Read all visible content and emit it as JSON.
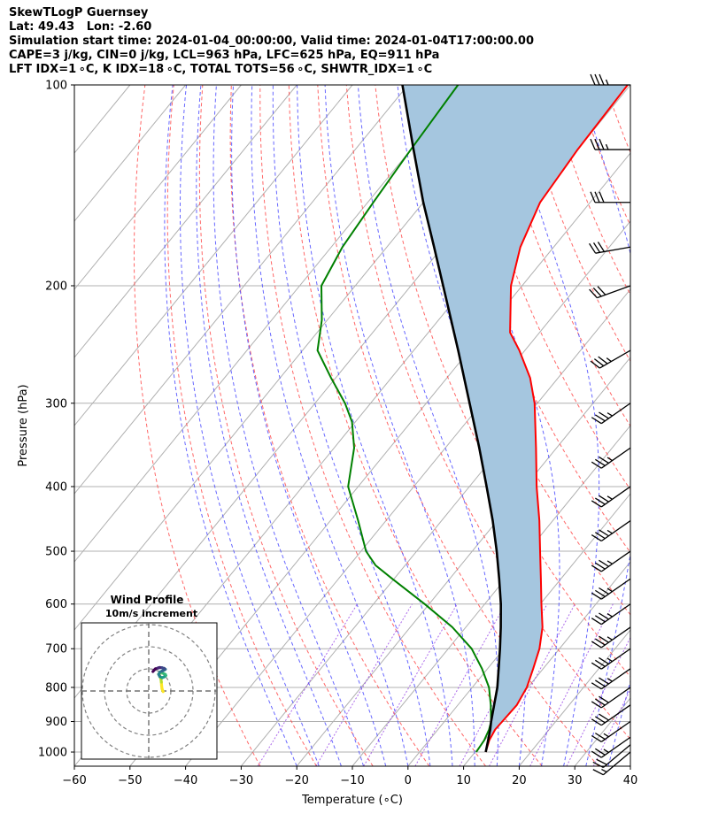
{
  "header": {
    "line1": "SkewTLogP Guernsey",
    "line2": "Lat: 49.43   Lon: -2.60",
    "line3": "Simulation start time: 2024-01-04_00:00:00, Valid time: 2024-01-04T17:00:00.00",
    "line4": "CAPE=3 j/kg, CIN=0 j/kg, LCL=963 hPa, LFC=625 hPa, EQ=911 hPa",
    "line5": "LFT IDX=1 ∘C, K IDX=18 ∘C, TOTAL TOTS=56 ∘C, SHWTR_IDX=1 ∘C"
  },
  "chart_data": {
    "type": "line",
    "subtype": "skew-t log-p",
    "xlabel": "Temperature (∘C)",
    "ylabel": "Pressure (hPa)",
    "xlim": [
      -60,
      40
    ],
    "ylim": [
      1050,
      100
    ],
    "y_scale": "log",
    "x_ticks": [
      "−60",
      "−50",
      "−40",
      "−30",
      "−20",
      "−10",
      "0",
      "10",
      "20",
      "30",
      "40"
    ],
    "y_ticks": [
      1000,
      900,
      800,
      700,
      600,
      500,
      400,
      300,
      200,
      100
    ],
    "series": [
      {
        "role": "temperature",
        "color": "#ff0000",
        "p": [
          1000,
          960,
          925,
          900,
          850,
          800,
          750,
          700,
          650,
          600,
          550,
          500,
          450,
          400,
          350,
          300,
          275,
          250,
          235,
          200,
          175,
          150,
          125,
          100
        ],
        "t": [
          11.9,
          10.8,
          10.3,
          10.4,
          10.6,
          9.8,
          8.2,
          6.4,
          3.8,
          0.2,
          -3.6,
          -7.8,
          -12.4,
          -17.9,
          -23.7,
          -30.5,
          -35.0,
          -41.0,
          -45.3,
          -52.0,
          -56.0,
          -59.0,
          -60.0,
          -60.5
        ]
      },
      {
        "role": "dewpoint",
        "color": "#008000",
        "p": [
          1000,
          960,
          925,
          900,
          850,
          800,
          750,
          700,
          650,
          600,
          550,
          525,
          500,
          450,
          400,
          350,
          320,
          300,
          275,
          250,
          225,
          200,
          175,
          150,
          125,
          100
        ],
        "t": [
          10.2,
          9.9,
          9.2,
          8.4,
          5.9,
          3.0,
          -1.0,
          -5.8,
          -12.4,
          -20.8,
          -30.3,
          -35.3,
          -39.1,
          -45.0,
          -51.8,
          -56.4,
          -60.6,
          -64.6,
          -70.8,
          -77.3,
          -81.0,
          -86.1,
          -88.0,
          -89.0,
          -90.0,
          -91.0
        ]
      },
      {
        "role": "parcel",
        "color": "#000000",
        "p": [
          1000,
          960,
          925,
          900,
          850,
          800,
          750,
          700,
          650,
          600,
          550,
          500,
          450,
          400,
          350,
          300,
          250,
          200,
          175,
          150,
          125,
          100
        ],
        "t": [
          11.9,
          10.6,
          9.4,
          8.4,
          6.5,
          4.5,
          2.0,
          -0.7,
          -3.7,
          -7.1,
          -11.1,
          -15.6,
          -20.8,
          -26.9,
          -33.9,
          -42.2,
          -52.0,
          -64.2,
          -71.5,
          -80.0,
          -89.5,
          -101.0
        ]
      }
    ],
    "shaded_region": {
      "between": [
        "parcel",
        "temperature"
      ],
      "color": "#a5c6df"
    },
    "reference_lines": [
      "isotherms",
      "dry adiabats",
      "moist adiabats",
      "mixing ratio lines",
      "pressure gridlines"
    ],
    "wind_barbs": [
      {
        "p": 1000,
        "dir": 230,
        "spd": 17
      },
      {
        "p": 975,
        "dir": 230,
        "spd": 20
      },
      {
        "p": 950,
        "dir": 235,
        "spd": 25
      },
      {
        "p": 900,
        "dir": 235,
        "spd": 27
      },
      {
        "p": 850,
        "dir": 235,
        "spd": 30
      },
      {
        "p": 800,
        "dir": 235,
        "spd": 32
      },
      {
        "p": 750,
        "dir": 235,
        "spd": 33
      },
      {
        "p": 700,
        "dir": 235,
        "spd": 34
      },
      {
        "p": 650,
        "dir": 235,
        "spd": 35
      },
      {
        "p": 600,
        "dir": 235,
        "spd": 36
      },
      {
        "p": 550,
        "dir": 235,
        "spd": 36
      },
      {
        "p": 500,
        "dir": 235,
        "spd": 36
      },
      {
        "p": 450,
        "dir": 235,
        "spd": 35
      },
      {
        "p": 400,
        "dir": 235,
        "spd": 34
      },
      {
        "p": 350,
        "dir": 235,
        "spd": 34
      },
      {
        "p": 300,
        "dir": 235,
        "spd": 33
      },
      {
        "p": 250,
        "dir": 240,
        "spd": 33
      },
      {
        "p": 200,
        "dir": 250,
        "spd": 32
      },
      {
        "p": 175,
        "dir": 260,
        "spd": 31
      },
      {
        "p": 150,
        "dir": 270,
        "spd": 32
      },
      {
        "p": 125,
        "dir": 270,
        "spd": 33
      },
      {
        "p": 100,
        "dir": 270,
        "spd": 34
      }
    ],
    "hodograph": {
      "title": "Wind Profile",
      "subtitle": "10m/s increment",
      "rings_ms": [
        10,
        20,
        30
      ],
      "u": [
        6.5,
        6.0,
        5.8,
        5.7,
        5.5,
        5.0,
        4.5,
        5.3,
        6.5,
        7.5,
        7.7,
        7.0,
        6.0,
        5.0,
        4.5,
        5.0,
        6.0,
        7.0,
        7.5,
        7.0,
        6.0,
        5.0,
        4.5,
        4.0,
        3.0,
        2.5,
        1.9
      ],
      "v": [
        -0.3,
        1.0,
        2.5,
        4.0,
        5.5,
        6.7,
        7.7,
        8.2,
        8.0,
        7.5,
        7.0,
        6.4,
        6.0,
        6.5,
        7.5,
        8.5,
        9.0,
        9.5,
        9.8,
        10.2,
        10.5,
        10.6,
        10.5,
        10.3,
        10.0,
        9.5,
        8.8
      ],
      "colormap": "viridis"
    }
  }
}
